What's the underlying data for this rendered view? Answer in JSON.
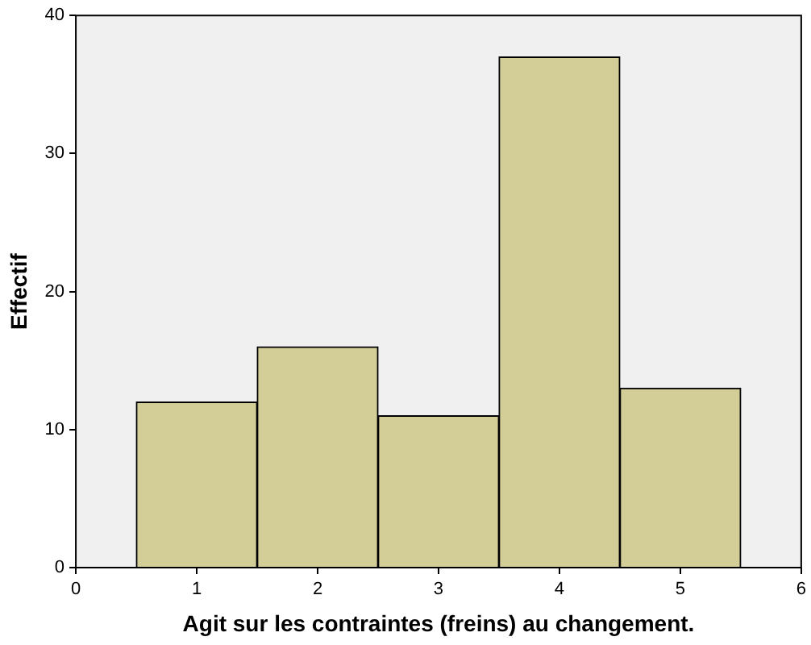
{
  "chart_data": {
    "type": "histogram",
    "xlabel": "Agit sur les contraintes (freins) au changement.",
    "ylabel": "Effectif",
    "bins": [
      0.5,
      1.5,
      2.5,
      3.5,
      4.5,
      5.5
    ],
    "values": [
      12,
      16,
      11,
      37,
      13
    ],
    "color": "#d3ce97",
    "xlim": [
      0,
      6
    ],
    "xticks": [
      0,
      1,
      2,
      3,
      4,
      5,
      6
    ],
    "ylim": [
      0,
      40
    ],
    "yticks": [
      0,
      10,
      20,
      30,
      40
    ],
    "grid": false,
    "legend": false
  }
}
